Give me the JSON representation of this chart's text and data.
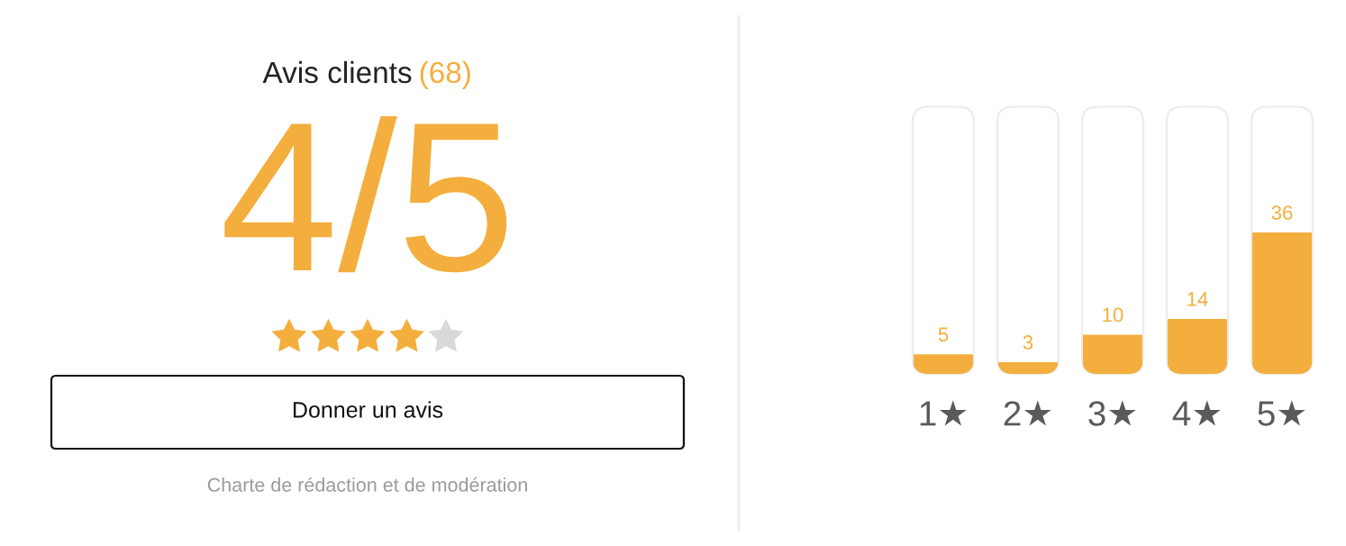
{
  "chart_data": [
    {
      "type": "other",
      "title": "Avis clients (68)",
      "color": "#f4ae3d",
      "colors": [
        "#f4ae3d",
        "#f4ae3d",
        "#f4ae3d",
        "#f4ae3d",
        "#d9d9d9"
      ],
      "annotations": [
        "4/5",
        "Donner un avis",
        "Charte de rédaction et de modération"
      ]
    },
    {
      "type": "bar",
      "categories": [
        "1★",
        "2★",
        "3★",
        "4★",
        "5★"
      ],
      "values": [
        5,
        3,
        10,
        14,
        36
      ],
      "color": "#f4ae3d",
      "ylim": [
        0,
        68
      ],
      "data_labels": true,
      "tick_labels": "x"
    }
  ]
}
